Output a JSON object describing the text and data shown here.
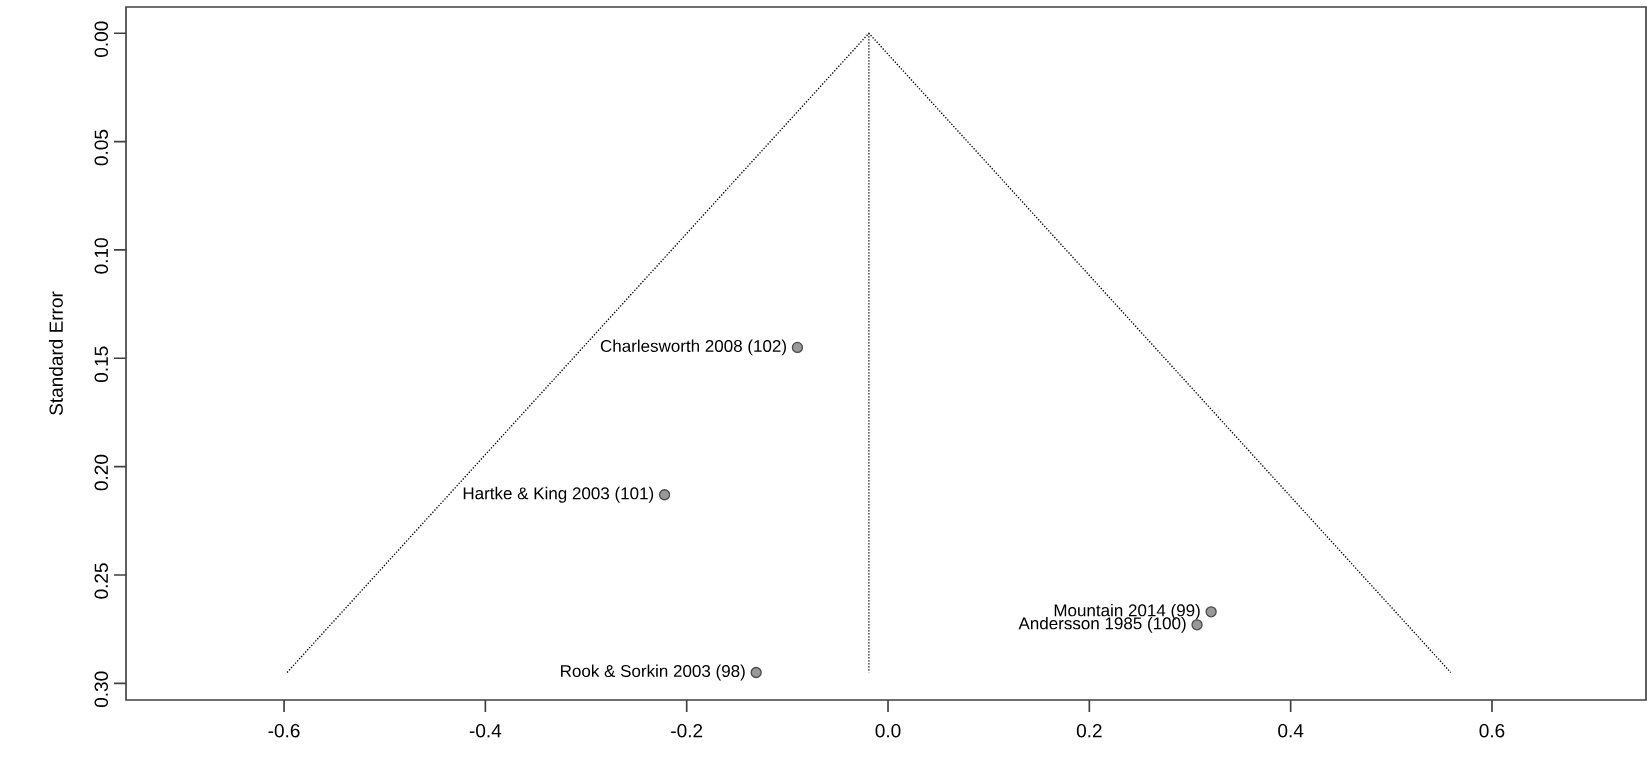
{
  "chart_data": {
    "type": "scatter",
    "ylabel": "Standard Error",
    "xlim": [
      -0.757,
      0.753
    ],
    "ylim": [
      0.3077,
      -0.0121
    ],
    "xticks": [
      -0.6,
      -0.4,
      -0.2,
      {
        "value": 0,
        "label": "0.0"
      },
      0.2,
      0.4,
      0.6
    ],
    "yticks": [
      {
        "value": 0,
        "label": "0.00"
      },
      0.05,
      {
        "value": 0.1,
        "label": "0.10"
      },
      0.15,
      {
        "value": 0.2,
        "label": "0.20"
      },
      0.25,
      {
        "value": 0.3,
        "label": "0.30"
      }
    ],
    "series": [
      {
        "type": "line",
        "color": "#000000",
        "line_style": "dotted",
        "marker": "none",
        "x": [
          -0.597,
          -0.019,
          0.559
        ],
        "values": [
          0.295,
          0.0,
          0.295
        ]
      },
      {
        "type": "line",
        "color": "#000000",
        "line_style": "dotted",
        "marker": "none",
        "x": [
          -0.019,
          -0.019
        ],
        "values": [
          0.0,
          0.295
        ]
      },
      {
        "color": "#999999",
        "marker": "circle",
        "x": [
          -0.131,
          -0.222,
          -0.09,
          0.321,
          0.307
        ],
        "values": [
          0.295,
          0.213,
          0.145,
          0.267,
          0.273
        ]
      }
    ],
    "annotations": [
      {
        "text": "Rook & Sorkin 2003 (98)",
        "x": -0.131,
        "y": 0.295
      },
      {
        "text": "Hartke & King 2003 (101)",
        "x": -0.222,
        "y": 0.213
      },
      {
        "text": "Charlesworth 2008 (102)",
        "x": -0.09,
        "y": 0.145
      },
      {
        "text": "Mountain 2014 (99)",
        "x": 0.321,
        "y": 0.267
      },
      {
        "text": "Andersson 1985 (100)",
        "x": 0.307,
        "y": 0.273
      }
    ]
  }
}
